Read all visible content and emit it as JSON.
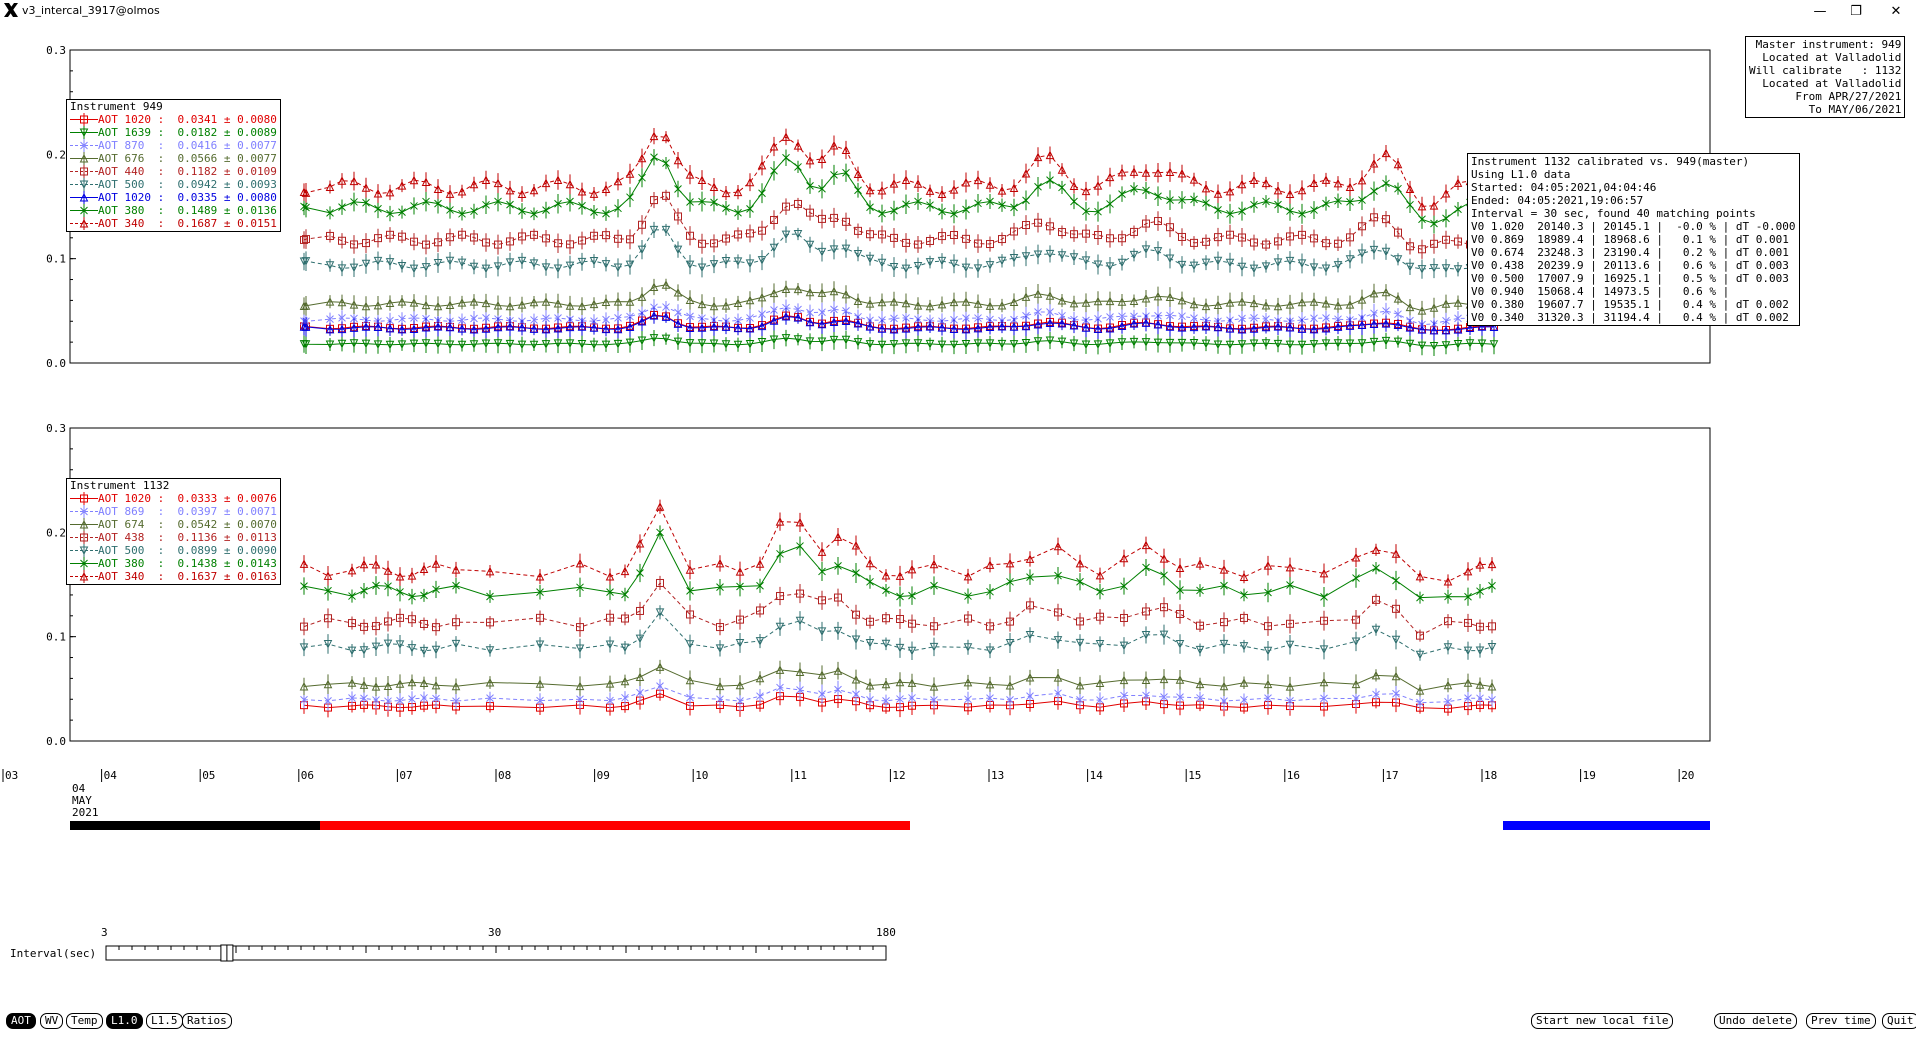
{
  "window": {
    "title": "v3_intercal_3917@olmos",
    "minimize": "—",
    "restore": "❐",
    "close": "✕"
  },
  "master_box": [
    "Master instrument: 949",
    " Located at Valladolid",
    "Will calibrate   : 1132",
    " Located at Valladolid",
    "From APR/27/2021",
    "To MAY/06/2021"
  ],
  "calib_box": [
    "Instrument 1132 calibrated vs. 949(master)",
    "Using L1.0 data",
    "Started: 04:05:2021,04:04:46",
    "Ended: 04:05:2021,19:06:57",
    "Interval = 30 sec, found 40 matching points",
    "V0 1.020  20140.3 | 20145.1 |  -0.0 % | dT -0.000",
    "V0 0.869  18989.4 | 18968.6 |   0.1 % | dT 0.001",
    "V0 0.674  23248.3 | 23190.4 |   0.2 % | dT 0.001",
    "V0 0.438  20239.9 | 20113.6 |   0.6 % | dT 0.003",
    "V0 0.500  17007.9 | 16925.1 |   0.5 % | dT 0.003",
    "V0 0.940  15068.4 | 14973.5 |   0.6 % |",
    "V0 0.380  19607.7 | 19535.1 |   0.4 % | dT 0.002",
    "V0 0.340  31320.3 | 31194.4 |   0.4 % | dT 0.002"
  ],
  "plot1": {
    "y_ticks": [
      "0.3",
      "0.2",
      "0.1",
      "0.0"
    ],
    "legend_title": "Instrument 949",
    "legend": [
      {
        "label": "AOT 1020 :",
        "value": "0.0341 ± 0.0080",
        "color": "#e00000",
        "marker": "square",
        "dash": false
      },
      {
        "label": "AOT 1639 :",
        "value": "0.0182 ± 0.0089",
        "color": "#008000",
        "marker": "tri-down",
        "dash": false
      },
      {
        "label": "AOT 870  :",
        "value": "0.0416 ± 0.0077",
        "color": "#8080ff",
        "marker": "x",
        "dash": true
      },
      {
        "label": "AOT 676  :",
        "value": "0.0566 ± 0.0077",
        "color": "#556b2f",
        "marker": "tri-up",
        "dash": false
      },
      {
        "label": "AOT 440  :",
        "value": "0.1182 ± 0.0109",
        "color": "#b22222",
        "marker": "square",
        "dash": true
      },
      {
        "label": "AOT 500  :",
        "value": "0.0942 ± 0.0093",
        "color": "#2f6f6f",
        "marker": "tri-down",
        "dash": true
      },
      {
        "label": "AOT 1020 :",
        "value": "0.0335 ± 0.0080",
        "color": "#0000e0",
        "marker": "tri-up",
        "dash": false
      },
      {
        "label": "AOT 380  :",
        "value": "0.1489 ± 0.0136",
        "color": "#008000",
        "marker": "x",
        "dash": false
      },
      {
        "label": "AOT 340  :",
        "value": "0.1687 ± 0.0151",
        "color": "#c00000",
        "marker": "tri-up",
        "dash": true
      }
    ]
  },
  "plot2": {
    "y_ticks": [
      "0.3",
      "0.2",
      "0.1",
      "0.0"
    ],
    "legend_title": "Instrument 1132",
    "legend": [
      {
        "label": "AOT 1020 :",
        "value": "0.0333 ± 0.0076",
        "color": "#e00000",
        "marker": "square",
        "dash": false
      },
      {
        "label": "AOT 869  :",
        "value": "0.0397 ± 0.0071",
        "color": "#8080ff",
        "marker": "x",
        "dash": true
      },
      {
        "label": "AOT 674  :",
        "value": "0.0542 ± 0.0070",
        "color": "#556b2f",
        "marker": "tri-up",
        "dash": false
      },
      {
        "label": "AOT 438  :",
        "value": "0.1136 ± 0.0113",
        "color": "#b22222",
        "marker": "square",
        "dash": true
      },
      {
        "label": "AOT 500  :",
        "value": "0.0899 ± 0.0090",
        "color": "#2f6f6f",
        "marker": "tri-down",
        "dash": true
      },
      {
        "label": "AOT 380  :",
        "value": "0.1438 ± 0.0143",
        "color": "#008000",
        "marker": "x",
        "dash": false
      },
      {
        "label": "AOT 340  :",
        "value": "0.1637 ± 0.0163",
        "color": "#c00000",
        "marker": "tri-up",
        "dash": true
      }
    ]
  },
  "time_axis": {
    "ticks": [
      "03",
      "04",
      "05",
      "06",
      "07",
      "08",
      "09",
      "10",
      "11",
      "12",
      "13",
      "14",
      "15",
      "16",
      "17",
      "18",
      "19",
      "20"
    ],
    "date_label": [
      "04",
      "MAY",
      "2021"
    ]
  },
  "slider": {
    "label": "Interval(sec)",
    "min": "3",
    "mid": "30",
    "max": "180",
    "value_fraction": 0.155
  },
  "bottom_buttons_left": [
    {
      "label": "AOT",
      "active": true
    },
    {
      "label": "WV",
      "active": false
    },
    {
      "label": "Temp",
      "active": false
    },
    {
      "label": "L1.0",
      "active": true
    },
    {
      "label": "L1.5",
      "active": false
    },
    {
      "label": "Ratios",
      "active": false
    }
  ],
  "bottom_buttons_right": [
    {
      "label": "Start new local file"
    },
    {
      "label": "Undo delete"
    },
    {
      "label": "Prev time"
    },
    {
      "label": "Quit"
    }
  ]
}
